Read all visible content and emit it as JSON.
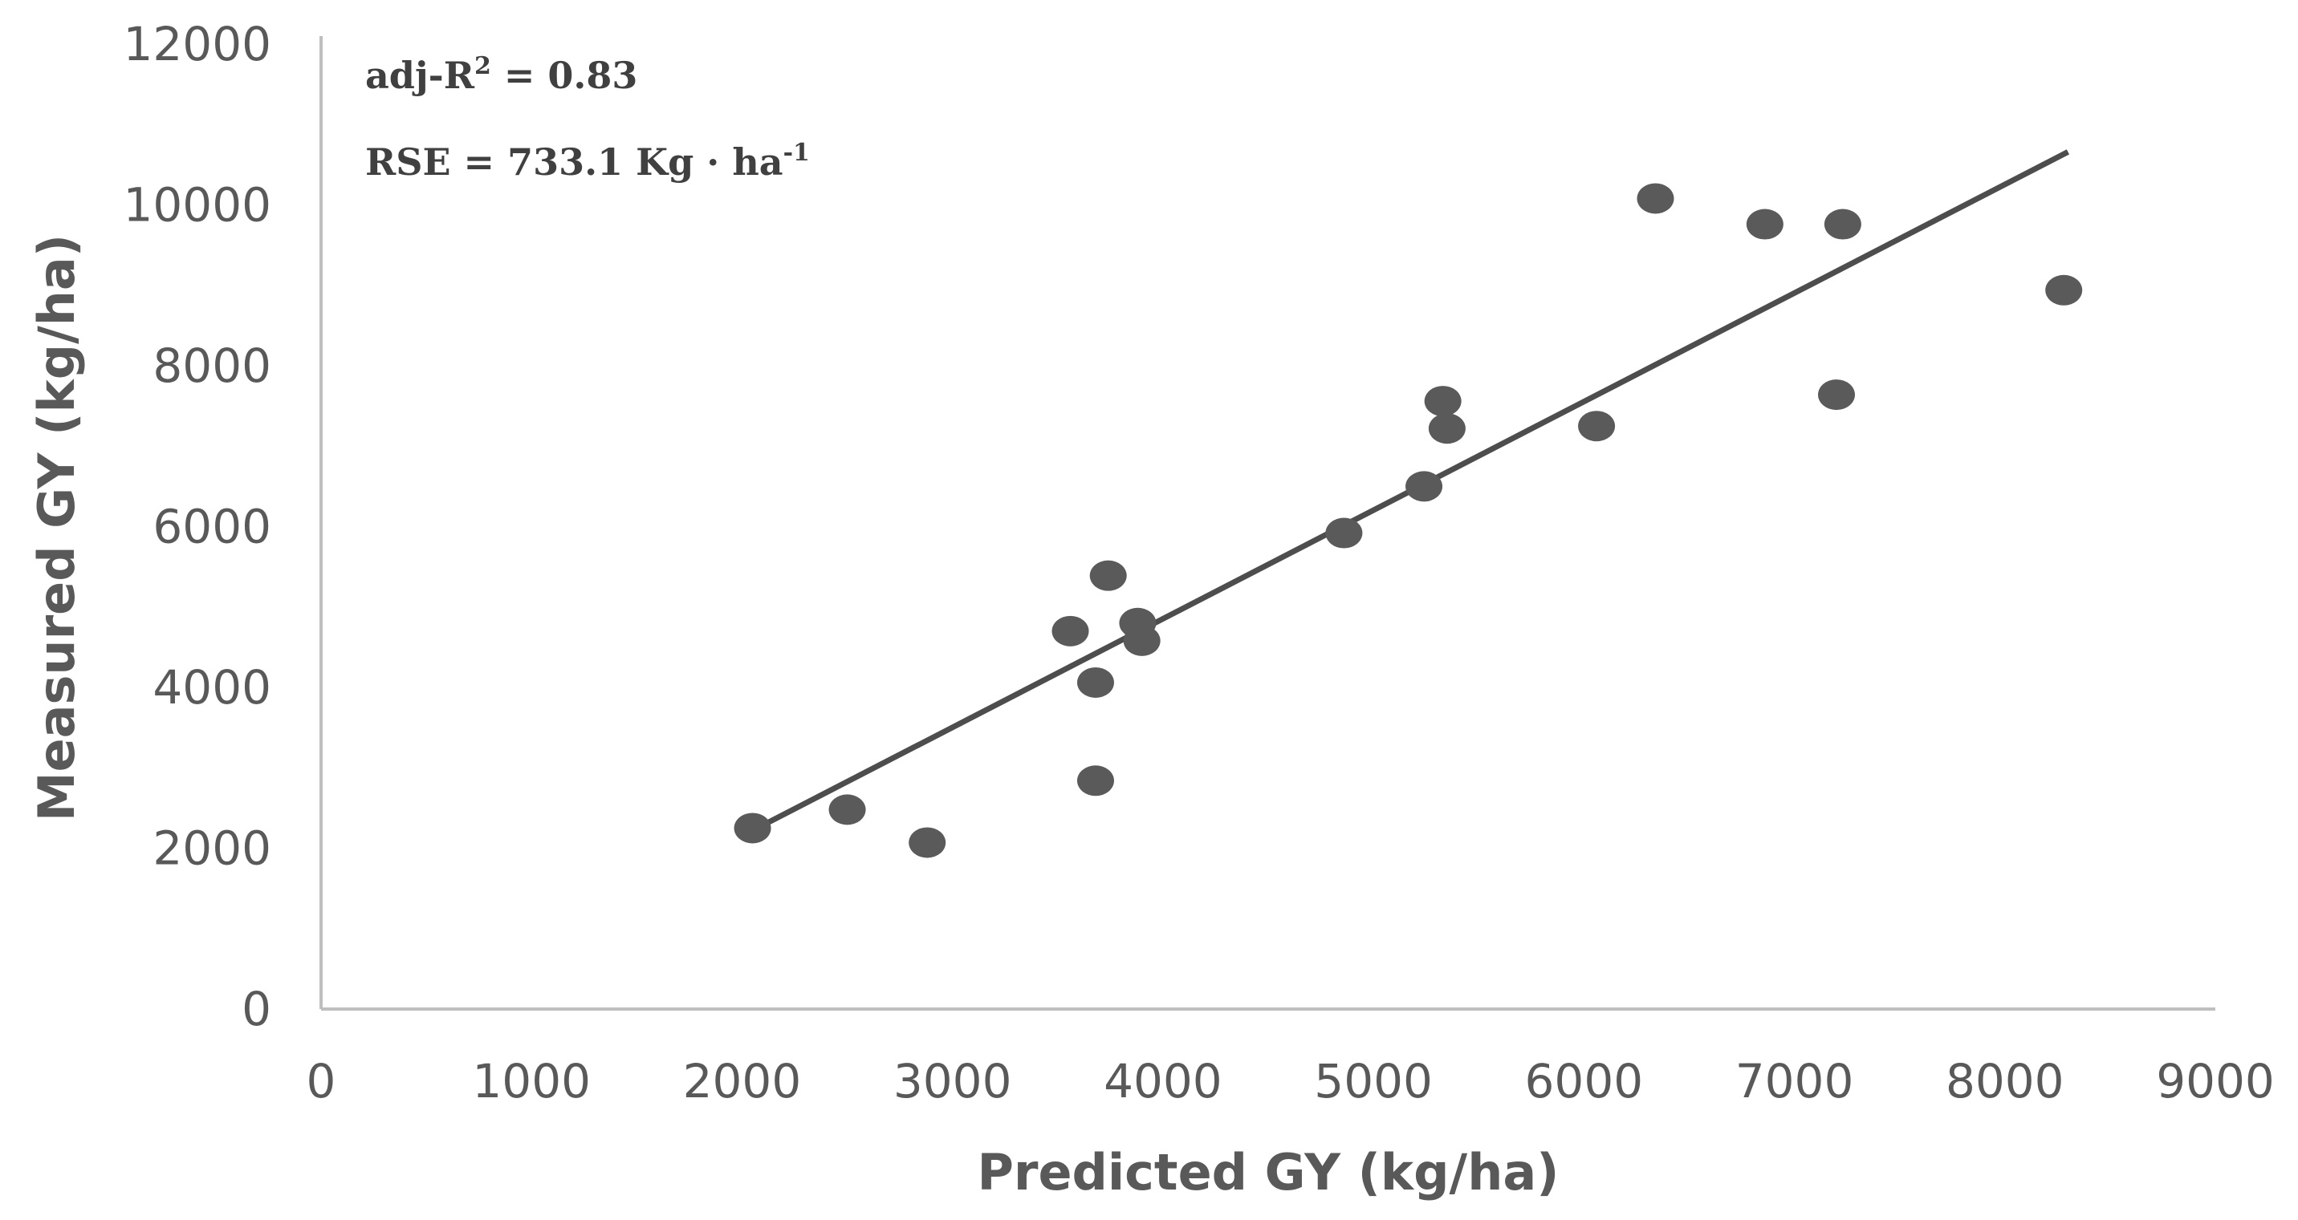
{
  "chart_data": {
    "type": "scatter",
    "xlabel": "Predicted GY (kg/ha)",
    "ylabel": "Measured GY (kg/ha)",
    "xlim": [
      0,
      9000
    ],
    "ylim": [
      0,
      12000
    ],
    "xticks": [
      0,
      1000,
      2000,
      3000,
      4000,
      5000,
      6000,
      7000,
      8000,
      9000
    ],
    "yticks": [
      0,
      2000,
      4000,
      6000,
      8000,
      10000,
      12000
    ],
    "grid": false,
    "annotations": {
      "r2_prefix": "adj-R",
      "r2_sup": "2",
      "r2_suffix": " = 0.83",
      "rse_prefix": "RSE = 733.1 Kg · ha",
      "rse_sup": "-1"
    },
    "points": [
      {
        "x": 2050,
        "y": 2250
      },
      {
        "x": 2500,
        "y": 2480
      },
      {
        "x": 2880,
        "y": 2070
      },
      {
        "x": 3560,
        "y": 4700
      },
      {
        "x": 3680,
        "y": 2840
      },
      {
        "x": 3680,
        "y": 4060
      },
      {
        "x": 3740,
        "y": 5390
      },
      {
        "x": 3880,
        "y": 4800
      },
      {
        "x": 3900,
        "y": 4580
      },
      {
        "x": 4860,
        "y": 5920
      },
      {
        "x": 5240,
        "y": 6500
      },
      {
        "x": 5330,
        "y": 7560
      },
      {
        "x": 5350,
        "y": 7220
      },
      {
        "x": 6060,
        "y": 7250
      },
      {
        "x": 6340,
        "y": 10080
      },
      {
        "x": 6860,
        "y": 9760
      },
      {
        "x": 7200,
        "y": 7640
      },
      {
        "x": 7230,
        "y": 9760
      },
      {
        "x": 8280,
        "y": 8940
      }
    ],
    "trendline": {
      "x": [
        2050,
        8300
      ],
      "y": [
        2220,
        10660
      ]
    }
  }
}
